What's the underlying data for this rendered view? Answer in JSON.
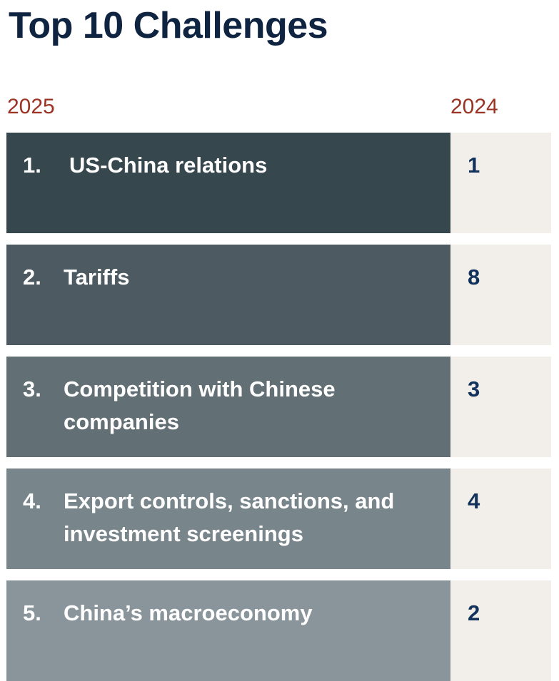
{
  "title": "Top 10 Challenges",
  "columns": {
    "current_year": "2025",
    "prior_year": "2024"
  },
  "colors": {
    "title": "#0f2440",
    "year_label": "#9a3324",
    "prior_panel": "#f2efea",
    "prior_rank": "#13325b",
    "row_shades": [
      "#37474e",
      "#4d5a61",
      "#626f75",
      "#78858b",
      "#89959b"
    ]
  },
  "rows": [
    {
      "rank": "1.",
      "label": "US-China relations",
      "prior_rank": "1"
    },
    {
      "rank": "2.",
      "label": "Tariffs",
      "prior_rank": "8"
    },
    {
      "rank": "3.",
      "label": "Competition with Chinese companies",
      "prior_rank": "3"
    },
    {
      "rank": "4.",
      "label": "Export controls, sanctions, and investment screenings",
      "prior_rank": "4"
    },
    {
      "rank": "5.",
      "label": "China’s macroeconomy",
      "prior_rank": "2"
    }
  ]
}
